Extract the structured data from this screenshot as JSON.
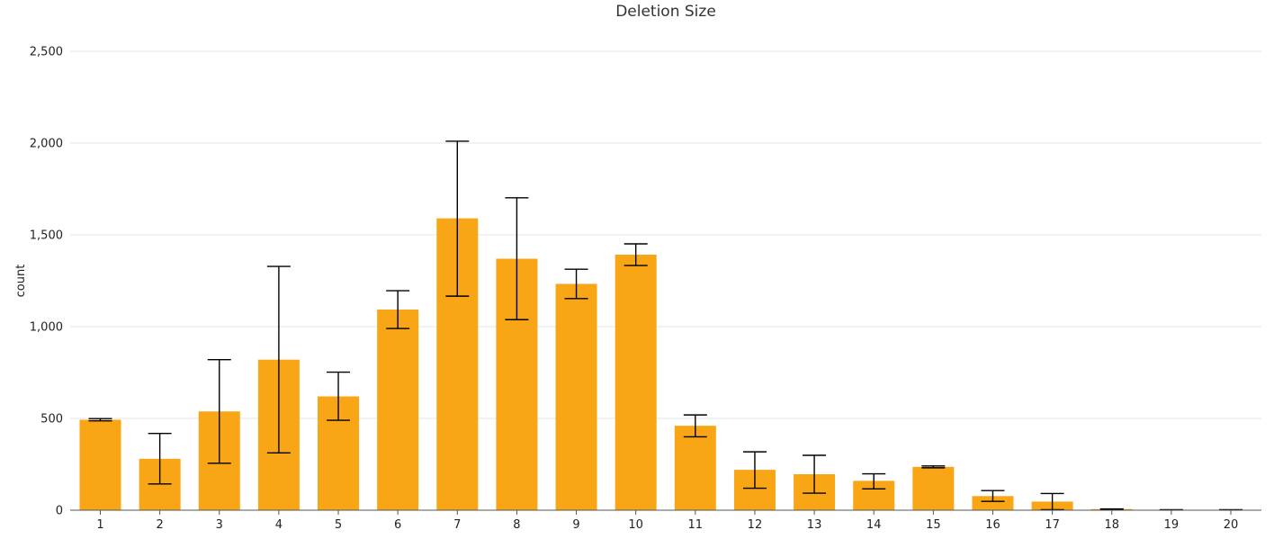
{
  "chart_data": {
    "type": "bar",
    "title": "Deletion Size",
    "xlabel": "",
    "ylabel": "count",
    "ylim": [
      0,
      2500
    ],
    "y_ticks": [
      0,
      500,
      1000,
      1500,
      2000,
      2500
    ],
    "y_tick_labels": [
      "0",
      "500",
      "1,000",
      "1,500",
      "2,000",
      "2,500"
    ],
    "grid": "horizontal",
    "bar_color": "#F8A516",
    "error_bar_color": "#000000",
    "categories": [
      "1",
      "2",
      "3",
      "4",
      "5",
      "6",
      "7",
      "8",
      "9",
      "10",
      "11",
      "12",
      "13",
      "14",
      "15",
      "16",
      "17",
      "18",
      "19",
      "20"
    ],
    "values": [
      493,
      280,
      538,
      820,
      620,
      1093,
      1590,
      1370,
      1233,
      1392,
      460,
      220,
      196,
      160,
      236,
      77,
      47,
      6,
      2,
      2
    ],
    "error_low": [
      487,
      143,
      256,
      312,
      490,
      990,
      1166,
      1038,
      1153,
      1333,
      400,
      120,
      93,
      116,
      231,
      48,
      3,
      5,
      1,
      1
    ],
    "error_high": [
      499,
      418,
      820,
      1328,
      752,
      1196,
      2010,
      1702,
      1313,
      1451,
      519,
      318,
      299,
      198,
      241,
      107,
      91,
      7,
      3,
      3
    ]
  }
}
